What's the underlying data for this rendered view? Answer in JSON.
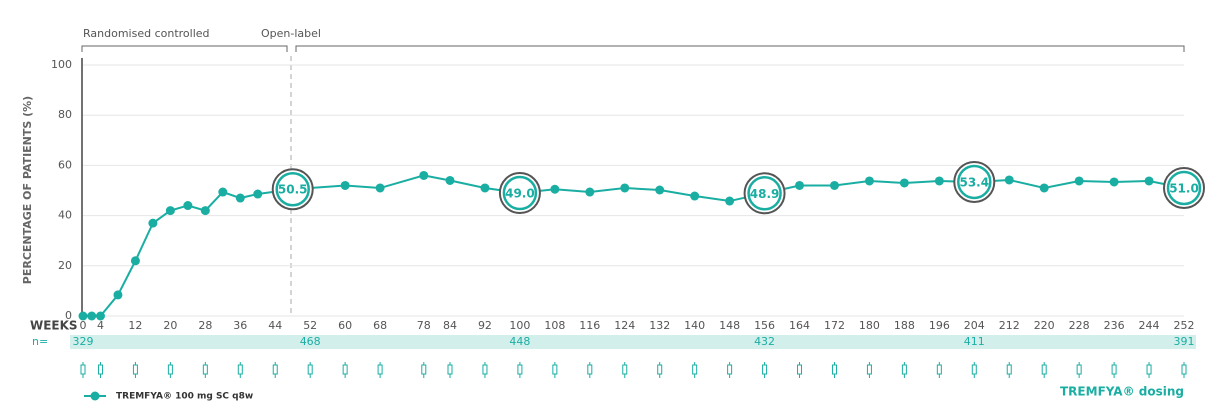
{
  "chart_data": {
    "type": "line",
    "y_label": "PERCENTAGE OF PATIENTS (%)",
    "x_label": "WEEKS",
    "phases": [
      "Randomised controlled",
      "Open-label"
    ],
    "x": [
      0,
      2,
      4,
      8,
      12,
      16,
      20,
      24,
      28,
      32,
      36,
      40,
      48,
      60,
      68,
      78,
      84,
      92,
      100,
      108,
      116,
      124,
      132,
      140,
      148,
      156,
      164,
      172,
      180,
      188,
      196,
      204,
      212,
      220,
      228,
      236,
      244,
      252
    ],
    "series": [
      {
        "name": "TREMFYA® 100 mg SC q8w",
        "color": "#1aaea3",
        "values": [
          0,
          0,
          0,
          8.4,
          22,
          37,
          42,
          44,
          42,
          49.4,
          47,
          48.6,
          50.5,
          52,
          51,
          56,
          54,
          51,
          49.0,
          50.5,
          49.4,
          51,
          50.2,
          47.8,
          45.8,
          48.9,
          52,
          52,
          53.8,
          53,
          53.8,
          53.4,
          54.2,
          51,
          53.8,
          53.4,
          53.8,
          51.0
        ],
        "value_labels": [
          null,
          null,
          null,
          null,
          null,
          null,
          null,
          null,
          null,
          null,
          null,
          null,
          "50.5",
          null,
          null,
          null,
          null,
          null,
          "49.0",
          null,
          null,
          null,
          null,
          null,
          null,
          "48.9",
          null,
          null,
          null,
          null,
          null,
          "53.4",
          null,
          null,
          null,
          null,
          null,
          "51.0"
        ]
      }
    ],
    "xlim": [
      0,
      252
    ],
    "xticks": [
      0,
      4,
      12,
      20,
      28,
      36,
      44,
      52,
      60,
      68,
      78,
      84,
      92,
      100,
      108,
      116,
      124,
      132,
      140,
      148,
      156,
      164,
      172,
      180,
      188,
      196,
      204,
      212,
      220,
      228,
      236,
      244,
      252
    ],
    "ylim": [
      0,
      100
    ],
    "yticks": [
      0,
      20,
      40,
      60,
      80,
      100
    ],
    "grid": true,
    "sample_sizes": {
      "label": "n=",
      "x": [
        0,
        52,
        100,
        156,
        204,
        252
      ],
      "values": [
        329,
        468,
        448,
        432,
        411,
        391
      ]
    },
    "dosing_label": "TREMFYA® dosing"
  }
}
